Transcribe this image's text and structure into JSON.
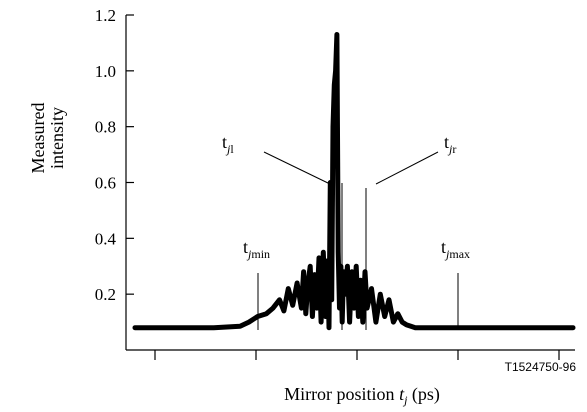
{
  "chart_data": {
    "type": "line",
    "title": "",
    "ylabel_lines": [
      "Measured",
      "intensity"
    ],
    "xlabel": {
      "prefix": "Mirror position ",
      "var": "t",
      "sub": "j",
      "suffix": " (ps)"
    },
    "ylim": [
      0.0,
      1.2
    ],
    "yticks": [
      {
        "value": 0.2,
        "label": "0.2"
      },
      {
        "value": 0.4,
        "label": "0.4"
      },
      {
        "value": 0.6,
        "label": "0.6"
      },
      {
        "value": 0.8,
        "label": "0.8"
      },
      {
        "value": 1.0,
        "label": "1.0"
      },
      {
        "value": 1.2,
        "label": "1.2"
      }
    ],
    "xlim": [
      0,
      100
    ],
    "xticks": [
      5,
      25,
      45,
      65,
      85,
      105
    ],
    "xticks_labeled": false,
    "grid": false,
    "series": [
      {
        "x": [
          0,
          6,
          12,
          18,
          24,
          26,
          28,
          30,
          31.5,
          33,
          34,
          35,
          36,
          37,
          38,
          38.5,
          39,
          39.5,
          40,
          40.5,
          41,
          41.5,
          42,
          42.5,
          43,
          43.5,
          44,
          44.3,
          44.6,
          44.9,
          45.2,
          45.5,
          45.8,
          46.1,
          46.4,
          46.7,
          47,
          47.3,
          47.6,
          48,
          48.5,
          49,
          49.5,
          50,
          50.5,
          51,
          51.5,
          52,
          52.5,
          53,
          54,
          55,
          56,
          57,
          58,
          59,
          60,
          61,
          62,
          63,
          64,
          66,
          68,
          72,
          80,
          90,
          100
        ],
        "y": [
          0.08,
          0.08,
          0.08,
          0.08,
          0.085,
          0.1,
          0.12,
          0.13,
          0.15,
          0.18,
          0.14,
          0.22,
          0.16,
          0.24,
          0.15,
          0.28,
          0.13,
          0.24,
          0.3,
          0.12,
          0.27,
          0.15,
          0.33,
          0.1,
          0.35,
          0.12,
          0.32,
          0.08,
          0.6,
          0.18,
          0.8,
          0.95,
          1.0,
          1.13,
          0.35,
          0.15,
          0.3,
          0.1,
          0.28,
          0.2,
          0.3,
          0.1,
          0.28,
          0.15,
          0.3,
          0.12,
          0.25,
          0.1,
          0.28,
          0.15,
          0.22,
          0.1,
          0.2,
          0.12,
          0.18,
          0.1,
          0.13,
          0.1,
          0.09,
          0.085,
          0.08,
          0.08,
          0.08,
          0.08,
          0.08,
          0.08,
          0.08
        ]
      }
    ],
    "annotations": [
      {
        "base": "t",
        "sub": "j",
        "sub2": "l",
        "x": 42.5,
        "kind": "vline_with_leader"
      },
      {
        "base": "t",
        "sub": "j",
        "sub2": "r",
        "x": 46.0,
        "kind": "vline_with_leader"
      },
      {
        "base": "t",
        "sub": "j",
        "sub2": "min",
        "x": 25,
        "kind": "vline"
      },
      {
        "base": "t",
        "sub": "j",
        "sub2": "max",
        "x": 65,
        "kind": "vline"
      }
    ],
    "figure_id": "T1524750-96"
  }
}
